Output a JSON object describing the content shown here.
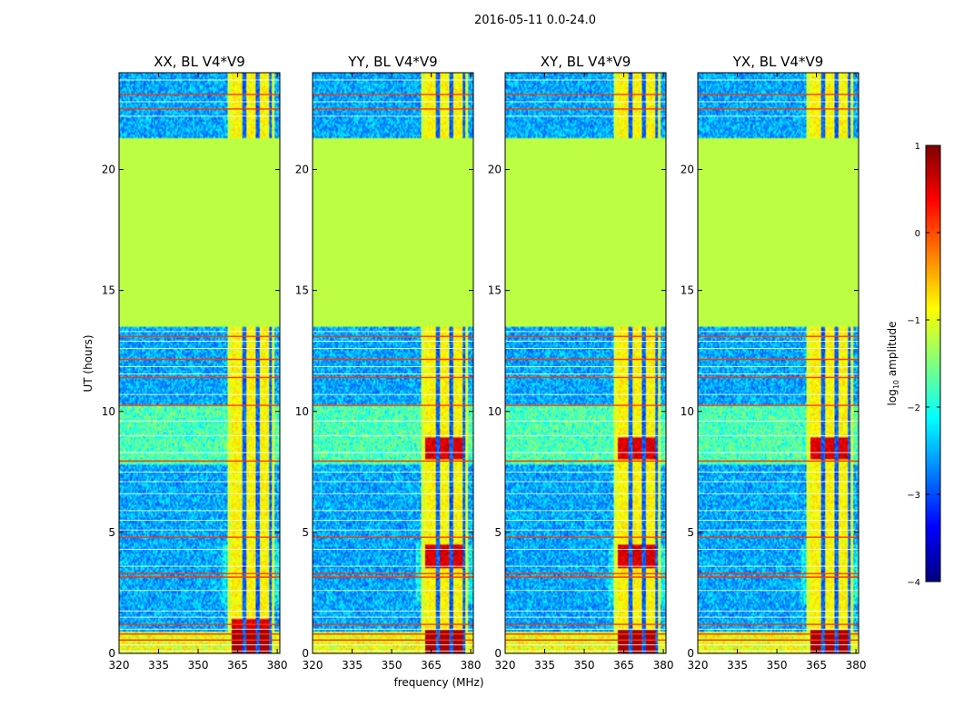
{
  "chart_data": {
    "type": "heatmap",
    "suptitle": "2016-05-11 0.0-24.0",
    "xlabel": "frequency (MHz)",
    "ylabel": "UT (hours)",
    "xlim": [
      320,
      381
    ],
    "ylim": [
      0,
      24
    ],
    "xticks": [
      320,
      335,
      350,
      365,
      380
    ],
    "yticks": [
      0,
      5,
      10,
      15,
      20
    ],
    "colorbar": {
      "label": "log10 amplitude",
      "label_base": "log",
      "label_sub": "10",
      "label_rest": " amplitude",
      "range": [
        -4,
        1
      ],
      "ticks": [
        {
          "value": 1,
          "label": "1"
        },
        {
          "value": 0,
          "label": "0"
        },
        {
          "value": -1,
          "label": "−1"
        },
        {
          "value": -2,
          "label": "−2"
        },
        {
          "value": -3,
          "label": "−3"
        },
        {
          "value": -4,
          "label": "−4"
        }
      ],
      "colors": [
        "#00007f",
        "#0000ff",
        "#007fff",
        "#00ffff",
        "#7fff7f",
        "#ffff00",
        "#ff7f00",
        "#ff0000",
        "#7f0000"
      ]
    },
    "panels": [
      {
        "title": "XX, BL V4*V9",
        "rfi_channels": [
          365,
          370,
          375
        ],
        "strong_band": [
          0.9,
          0.2
        ]
      },
      {
        "title": "YY, BL V4*V9",
        "rfi_channels": [
          365,
          370,
          375
        ],
        "strong_band": [
          4.0,
          8.5
        ]
      },
      {
        "title": "XY, BL V4*V9",
        "rfi_channels": [
          365,
          370,
          375
        ],
        "strong_band": [
          4.0,
          8.5
        ]
      },
      {
        "title": "YX, BL V4*V9",
        "rfi_channels": [
          365,
          370,
          375
        ],
        "strong_band": [
          0.2,
          8.5
        ]
      }
    ],
    "flagged_gap_hours": [
      13.5,
      21.3
    ],
    "flag_value": -1.2
  }
}
